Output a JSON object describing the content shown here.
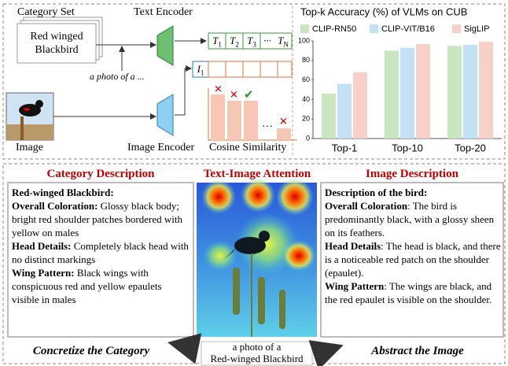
{
  "diagram": {
    "category_set": {
      "title": "Category Set",
      "card": "Red winged Blackbird"
    },
    "text_encoder": "Text Encoder",
    "prompt": "a photo of a ...",
    "text_tokens": [
      {
        "base": "T",
        "sub": "1"
      },
      {
        "base": "T",
        "sub": "2"
      },
      {
        "base": "T",
        "sub": "3"
      },
      {
        "base": "···"
      },
      {
        "base": "T",
        "sub": "N"
      }
    ],
    "image_token": {
      "base": "I",
      "sub": "1"
    },
    "image": "Image",
    "image_encoder": "Image Encoder",
    "cosine_similarity": "Cosine Similarity",
    "similarity_ellipsis": "…",
    "category_description": {
      "heading": "Category Description",
      "title": "Red-winged Blackbird:",
      "items": [
        {
          "head": "Overall Coloration:",
          "text": "Glossy black body; bright red shoulder patches bordered with yellow on males"
        },
        {
          "head": "Head Details:",
          "text": "Completely black head with no distinct markings"
        },
        {
          "head": "Wing Pattern:",
          "text": "Black wings with conspicuous red and yellow epaulets visible in males"
        }
      ]
    },
    "attention": {
      "heading": "Text-Image Attention",
      "caption_line1": "a photo of a",
      "caption_line2": "Red-winged Blackbird"
    },
    "image_description": {
      "heading": "Image Description",
      "title": "Description of the bird:",
      "items": [
        {
          "head": "Overall Coloration",
          "text": ": The bird is predominantly black, with a glossy sheen on its feathers."
        },
        {
          "head": "Head Details",
          "text": ": The head is black, and there is a noticeable red patch on the shoulder (epaulet)."
        },
        {
          "head": "Wing Pattern",
          "text": ": The wings are black, and the red epaulet is visible on the shoulder."
        }
      ]
    },
    "left_action": "Concretize the Category",
    "right_action": "Abstract the Image"
  },
  "chart_data": {
    "type": "bar",
    "title": "Top-k Accuracy (%)  of VLMs on CUB",
    "categories": [
      "Top-1",
      "Top-10",
      "Top-20"
    ],
    "series": [
      {
        "name": "CLIP-RN50",
        "color": "#c8e6c0",
        "values": [
          46,
          90,
          95
        ]
      },
      {
        "name": "CLIP-VIT/B16",
        "color": "#c2e1f4",
        "values": [
          56,
          93,
          96
        ]
      },
      {
        "name": "SigLIP",
        "color": "#f7d0c9",
        "values": [
          68,
          97,
          99
        ]
      }
    ],
    "ylim": [
      0,
      100
    ],
    "yticks": [
      0,
      20,
      40,
      60,
      80,
      100
    ],
    "grid": false
  }
}
